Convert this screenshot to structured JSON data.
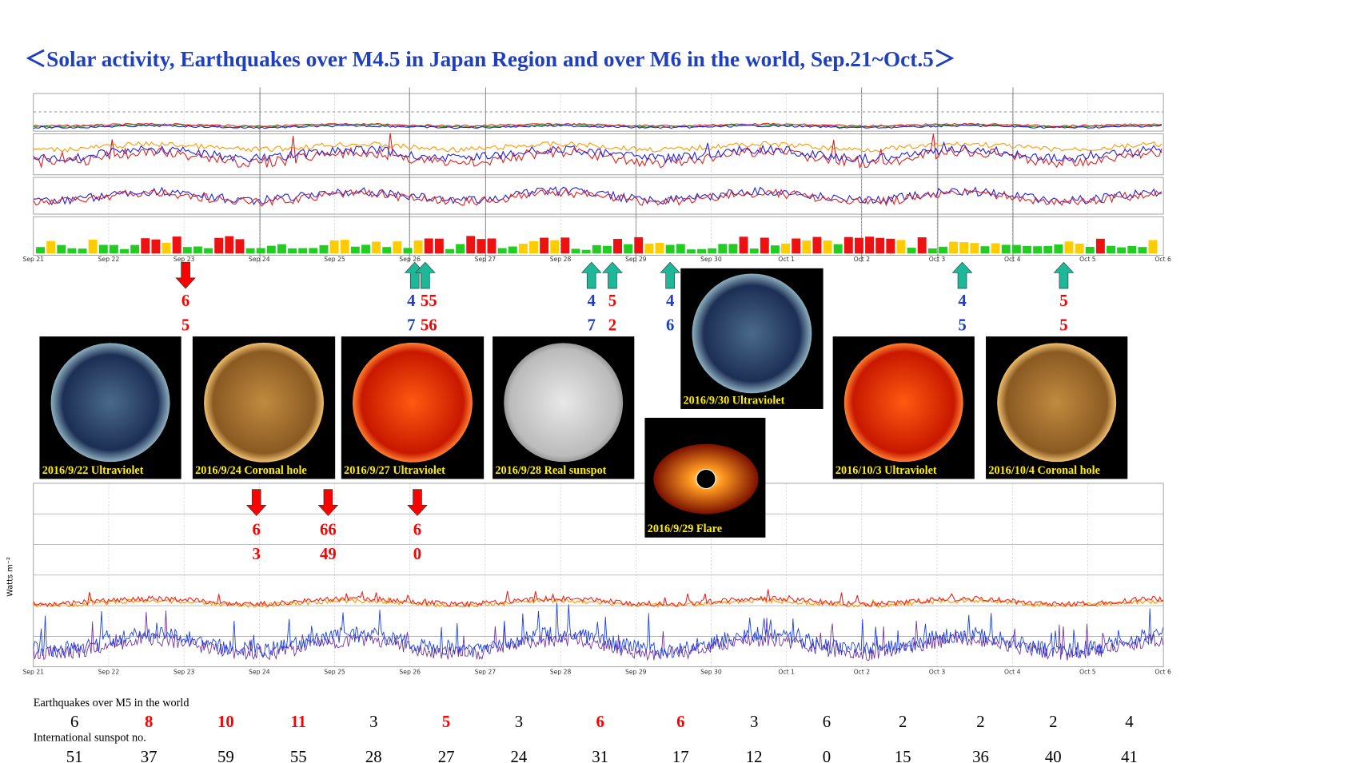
{
  "title": "＜Solar activity, Earthquakes over M4.5 in Japan Region and over M6 in the world, Sep.21~Oct.5＞",
  "dates": [
    "Sep 21",
    "Sep 22",
    "Sep 23",
    "Sep 24",
    "Sep 25",
    "Sep 26",
    "Sep 27",
    "Sep 28",
    "Sep 29",
    "Sep 30",
    "Oct 1",
    "Oct 2",
    "Oct 3",
    "Oct 4",
    "Oct 5",
    "Oct 6"
  ],
  "y_axis_label": "Watts m⁻²",
  "images": [
    {
      "caption": "2016/9/22 Ultraviolet",
      "kind": "blue"
    },
    {
      "caption": "2016/9/24 Coronal hole",
      "kind": "brown"
    },
    {
      "caption": "2016/9/27 Ultraviolet",
      "kind": "red"
    },
    {
      "caption": "2016/9/28 Real sunspot",
      "kind": "gray"
    },
    {
      "caption": "2016/9/30 Ultraviolet",
      "kind": "blue"
    },
    {
      "caption": "2016/10/3 Ultraviolet",
      "kind": "red"
    },
    {
      "caption": "2016/10/4 Coronal hole",
      "kind": "brown"
    },
    {
      "caption": "2016/9/29 Flare",
      "kind": "flare"
    }
  ],
  "top_annotations": [
    {
      "top": "6",
      "bottom": "5",
      "color": "#ff0000"
    },
    {
      "top": "4",
      "bottom": "7",
      "color": "#1f3fbf"
    },
    {
      "top": "55",
      "bottom": "56",
      "color": "#ff0000"
    },
    {
      "top": "4",
      "bottom": "7",
      "color": "#1f3fbf"
    },
    {
      "top": "5",
      "bottom": "2",
      "color": "#ff0000"
    },
    {
      "top": "4",
      "bottom": "6",
      "color": "#1f3fbf"
    },
    {
      "top": "4",
      "bottom": "5",
      "color": "#1f3fbf"
    },
    {
      "top": "5",
      "bottom": "5",
      "color": "#ff0000"
    }
  ],
  "bottom_annotations": [
    {
      "top": "6",
      "bottom": "3",
      "color": "#ff0000"
    },
    {
      "top": "66",
      "bottom": "49",
      "color": "#ff0000"
    },
    {
      "top": "6",
      "bottom": "0",
      "color": "#ff0000"
    }
  ],
  "table": {
    "earthquake_label": "Earthquakes over M5 in the world",
    "earthquakes": [
      6,
      8,
      10,
      11,
      3,
      5,
      3,
      6,
      6,
      3,
      6,
      2,
      2,
      2,
      4
    ],
    "earthquake_highlight": [
      false,
      true,
      true,
      true,
      false,
      true,
      false,
      true,
      true,
      false,
      false,
      false,
      false,
      false,
      false
    ],
    "sunspot_label": "International sunspot no.",
    "sunspots": [
      51,
      37,
      59,
      55,
      28,
      27,
      24,
      31,
      17,
      12,
      0,
      15,
      36,
      40,
      41
    ]
  }
}
